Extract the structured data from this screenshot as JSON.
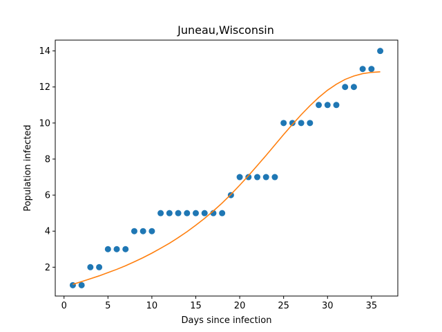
{
  "chart_data": {
    "type": "scatter",
    "title": "Juneau,Wisconsin",
    "xlabel": "Days since infection",
    "ylabel": "Population infected",
    "xlim": [
      -1,
      38
    ],
    "ylim": [
      0.4,
      14.6
    ],
    "xticks": [
      0,
      5,
      10,
      15,
      20,
      25,
      30,
      35
    ],
    "yticks": [
      2,
      4,
      6,
      8,
      10,
      12,
      14
    ],
    "grid": false,
    "colors": {
      "points": "#1f77b4",
      "fit": "#ff7f0e"
    },
    "series": [
      {
        "type": "scatter",
        "x": [
          1,
          2,
          3,
          4,
          5,
          6,
          7,
          8,
          9,
          10,
          11,
          12,
          13,
          14,
          15,
          16,
          17,
          18,
          19,
          20,
          21,
          22,
          23,
          24,
          25,
          26,
          27,
          28,
          29,
          30,
          31,
          32,
          33,
          34,
          35,
          36
        ],
        "y": [
          1,
          1,
          2,
          2,
          3,
          3,
          3,
          4,
          4,
          4,
          5,
          5,
          5,
          5,
          5,
          5,
          5,
          5,
          6,
          7,
          7,
          7,
          7,
          7,
          10,
          10,
          10,
          10,
          11,
          11,
          11,
          12,
          12,
          13,
          13,
          14
        ]
      },
      {
        "type": "line",
        "x": [
          1,
          2,
          3,
          4,
          5,
          6,
          7,
          8,
          9,
          10,
          11,
          12,
          13,
          14,
          15,
          16,
          17,
          18,
          19,
          20,
          21,
          22,
          23,
          24,
          25,
          26,
          27,
          28,
          29,
          30,
          31,
          32,
          33,
          34,
          35,
          36
        ],
        "y": [
          1.05,
          1.2,
          1.36,
          1.52,
          1.7,
          1.88,
          2.08,
          2.3,
          2.53,
          2.78,
          3.05,
          3.33,
          3.64,
          3.97,
          4.33,
          4.71,
          5.12,
          5.56,
          6.04,
          6.55,
          7.08,
          7.64,
          8.2,
          8.78,
          9.36,
          9.92,
          10.46,
          10.96,
          11.42,
          11.82,
          12.15,
          12.42,
          12.61,
          12.74,
          12.81,
          12.84
        ]
      }
    ]
  }
}
